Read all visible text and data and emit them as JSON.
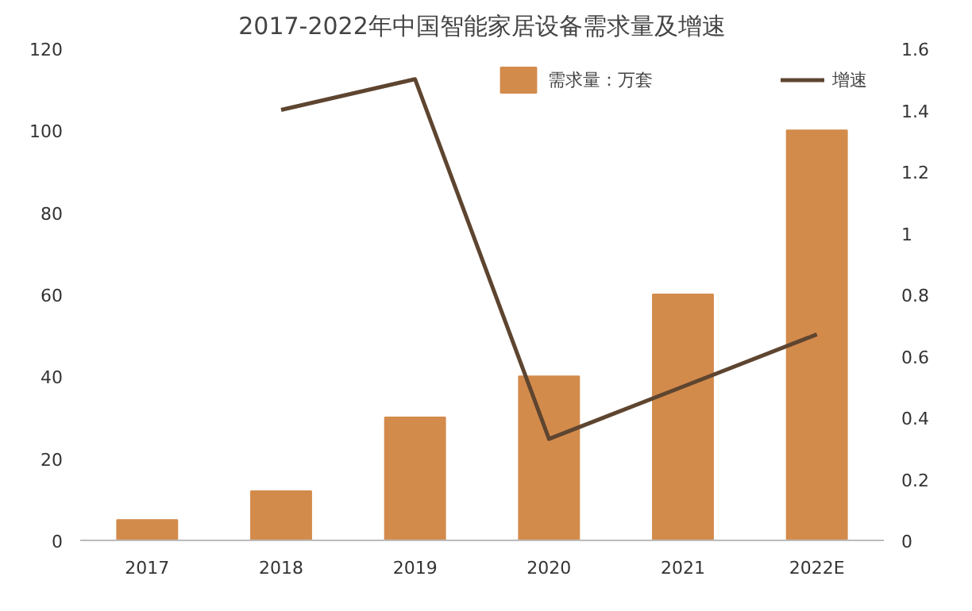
{
  "chart_data": {
    "type": "bar",
    "title": "2017-2022年中国智能家居设备需求量及增速",
    "categories": [
      "2017",
      "2018",
      "2019",
      "2020",
      "2021",
      "2022E"
    ],
    "series": [
      {
        "name": "需求量：万套",
        "color": "#d38b4c",
        "values": [
          5,
          12,
          30,
          40,
          60,
          100
        ]
      },
      {
        "name": "增速",
        "type": "line",
        "color": "#5e4530",
        "axis": "y2",
        "values": [
          null,
          1.4,
          1.5,
          0.33,
          0.5,
          0.67
        ]
      }
    ],
    "ylim": [
      0,
      120
    ],
    "yticks": [
      0,
      20,
      40,
      60,
      80,
      100,
      120
    ],
    "y2lim": [
      0,
      1.6
    ],
    "y2ticks": [
      0,
      0.2,
      0.4,
      0.6,
      0.8,
      1,
      1.2,
      1.4,
      1.6
    ],
    "grid": false,
    "legend": "top",
    "marker": "none",
    "line_style": "solid"
  }
}
